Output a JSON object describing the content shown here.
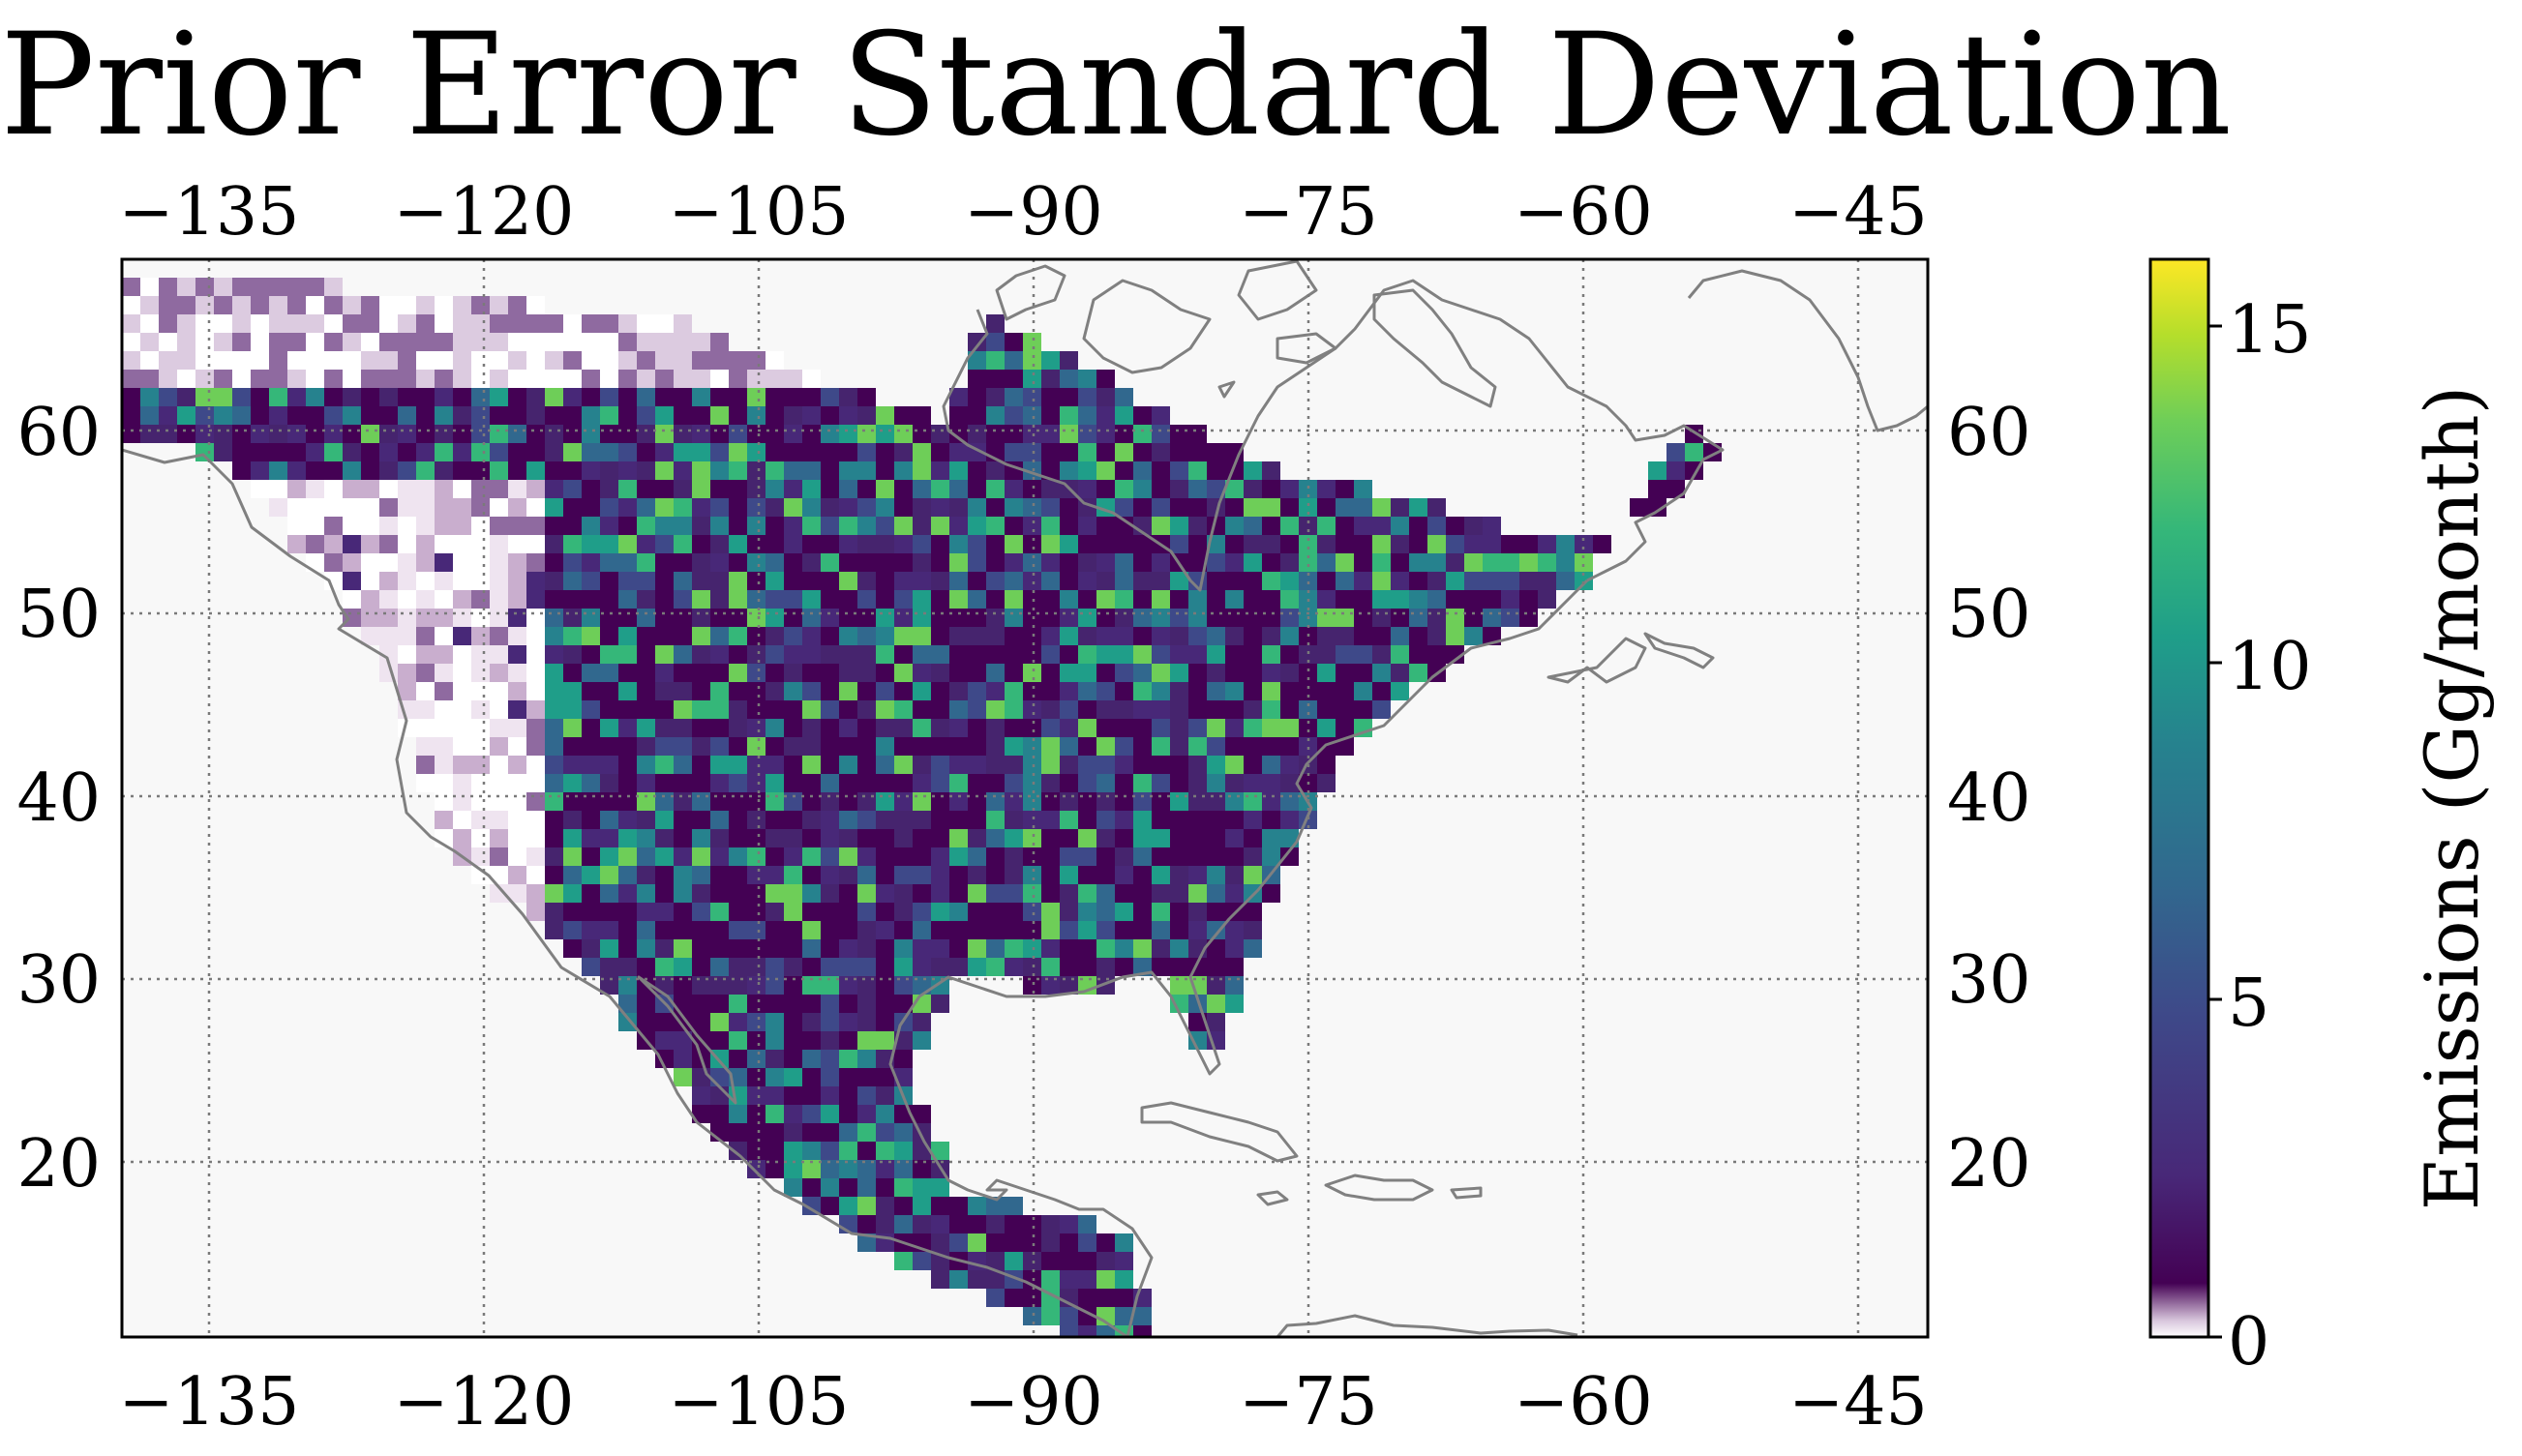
{
  "title": "Prior Error Standard Deviation",
  "map": {
    "lon_ticks": [
      "−135",
      "−120",
      "−105",
      "−90",
      "−75",
      "−60",
      "−45"
    ],
    "lat_ticks": [
      "60",
      "50",
      "40",
      "30",
      "20"
    ],
    "gridlines": "dotted",
    "coastline_color": "#808080",
    "background_color": "#f8f8f8"
  },
  "colorbar": {
    "label": "Emissions (Gg/month)",
    "ticks": [
      "0",
      "5",
      "10",
      "15"
    ],
    "colormap": "viridis"
  }
}
